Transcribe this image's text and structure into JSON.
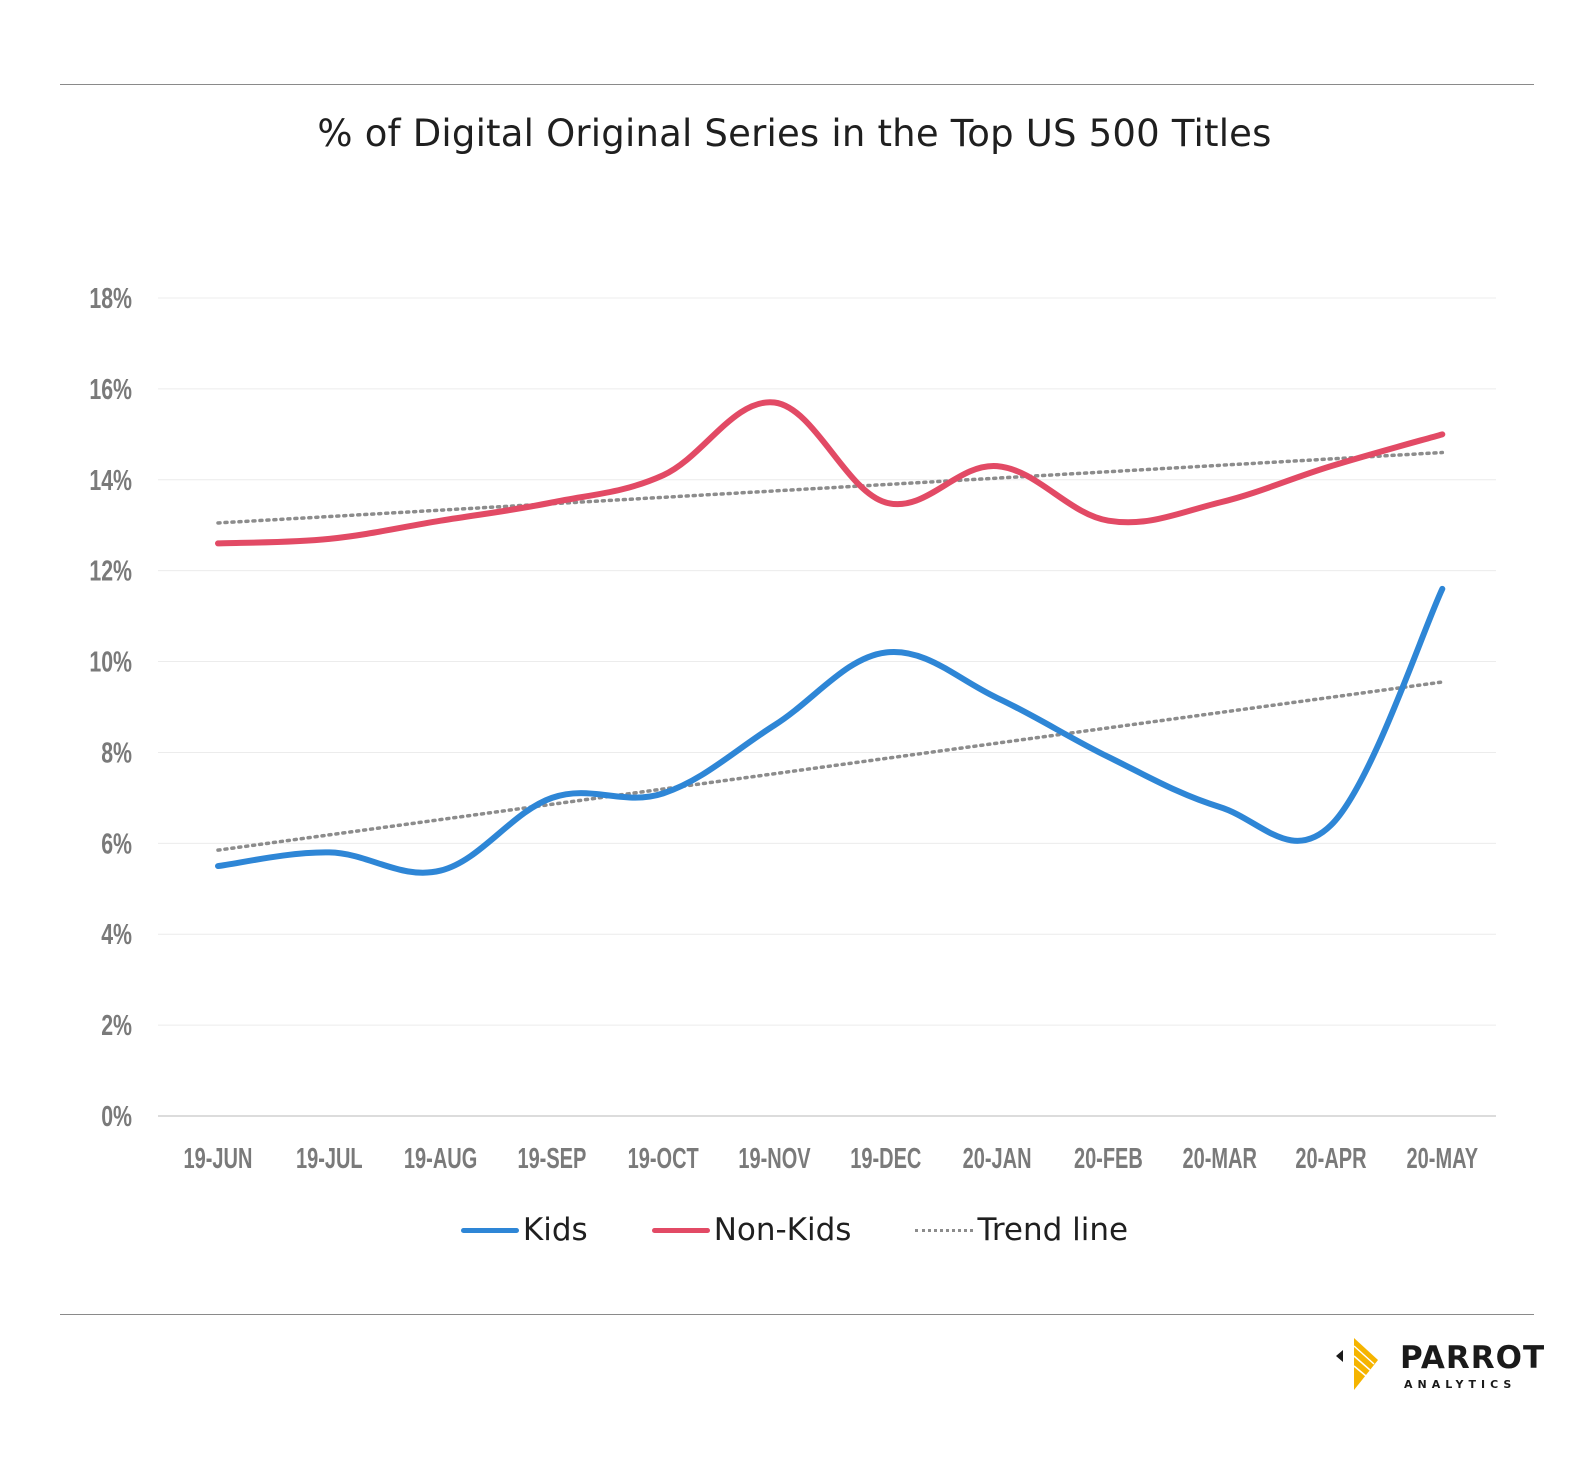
{
  "chart_data": {
    "type": "line",
    "title": "% of Digital Original Series in the Top US 500 Titles",
    "xlabel": "",
    "ylabel": "",
    "categories": [
      "19-JUN",
      "19-JUL",
      "19-AUG",
      "19-SEP",
      "19-OCT",
      "19-NOV",
      "19-DEC",
      "20-JAN",
      "20-FEB",
      "20-MAR",
      "20-APR",
      "20-MAY"
    ],
    "ylim": [
      0,
      18
    ],
    "yticks": [
      0,
      2,
      4,
      6,
      8,
      10,
      12,
      14,
      16,
      18
    ],
    "ytick_labels": [
      "0%",
      "2%",
      "4%",
      "6%",
      "8%",
      "10%",
      "12%",
      "14%",
      "16%",
      "18%"
    ],
    "grid": true,
    "legend_position": "bottom",
    "series": [
      {
        "name": "Kids",
        "color": "#2e86d6",
        "values": [
          5.5,
          5.8,
          5.4,
          7.0,
          7.1,
          8.6,
          10.2,
          9.2,
          7.9,
          6.8,
          6.4,
          11.6
        ]
      },
      {
        "name": "Non-Kids",
        "color": "#e24a65",
        "values": [
          12.6,
          12.7,
          13.1,
          13.5,
          14.1,
          15.7,
          13.5,
          14.3,
          13.1,
          13.5,
          14.3,
          15.0
        ]
      }
    ],
    "trendlines": [
      {
        "series": "Kids",
        "start": 5.85,
        "end": 9.55
      },
      {
        "series": "Non-Kids",
        "start": 13.05,
        "end": 14.6
      }
    ],
    "trend_color": "#8c8c8c",
    "legend": [
      {
        "label": "Kids",
        "style": "solid",
        "color": "#2e86d6"
      },
      {
        "label": "Non-Kids",
        "style": "solid",
        "color": "#e24a65"
      },
      {
        "label": "Trend line",
        "style": "dotted",
        "color": "#8c8c8c"
      }
    ]
  },
  "branding": {
    "logo_name": "PARROT",
    "logo_sub": "ANALYTICS",
    "logo_colors": [
      "#f5b400",
      "#1a1a1a"
    ]
  }
}
